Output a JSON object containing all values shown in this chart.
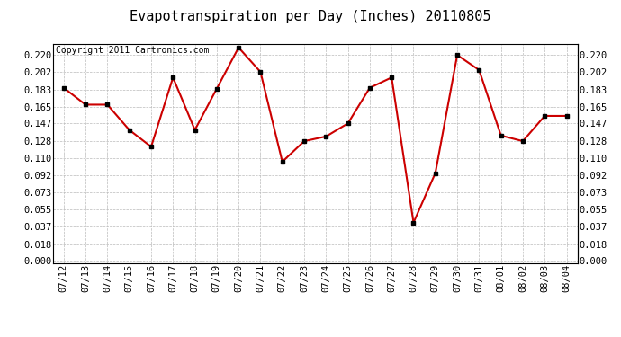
{
  "title": "Evapotranspiration per Day (Inches) 20110805",
  "copyright_text": "Copyright 2011 Cartronics.com",
  "dates": [
    "07/12",
    "07/13",
    "07/14",
    "07/15",
    "07/16",
    "07/17",
    "07/18",
    "07/19",
    "07/20",
    "07/21",
    "07/22",
    "07/23",
    "07/24",
    "07/25",
    "07/26",
    "07/27",
    "07/28",
    "07/29",
    "07/30",
    "07/31",
    "08/01",
    "08/02",
    "08/03",
    "08/04"
  ],
  "values": [
    0.185,
    0.167,
    0.167,
    0.14,
    0.122,
    0.196,
    0.14,
    0.184,
    0.228,
    0.202,
    0.106,
    0.128,
    0.133,
    0.147,
    0.185,
    0.196,
    0.041,
    0.094,
    0.22,
    0.204,
    0.134,
    0.128,
    0.155,
    0.155
  ],
  "line_color": "#cc0000",
  "marker": "s",
  "marker_size": 3,
  "marker_color": "#000000",
  "bg_color": "#ffffff",
  "grid_color": "#bbbbbb",
  "yticks": [
    0.0,
    0.018,
    0.037,
    0.055,
    0.073,
    0.092,
    0.11,
    0.128,
    0.147,
    0.165,
    0.183,
    0.202,
    0.22
  ],
  "ylim": [
    -0.002,
    0.232
  ],
  "title_fontsize": 11,
  "tick_fontsize": 7.5,
  "copyright_fontsize": 7
}
